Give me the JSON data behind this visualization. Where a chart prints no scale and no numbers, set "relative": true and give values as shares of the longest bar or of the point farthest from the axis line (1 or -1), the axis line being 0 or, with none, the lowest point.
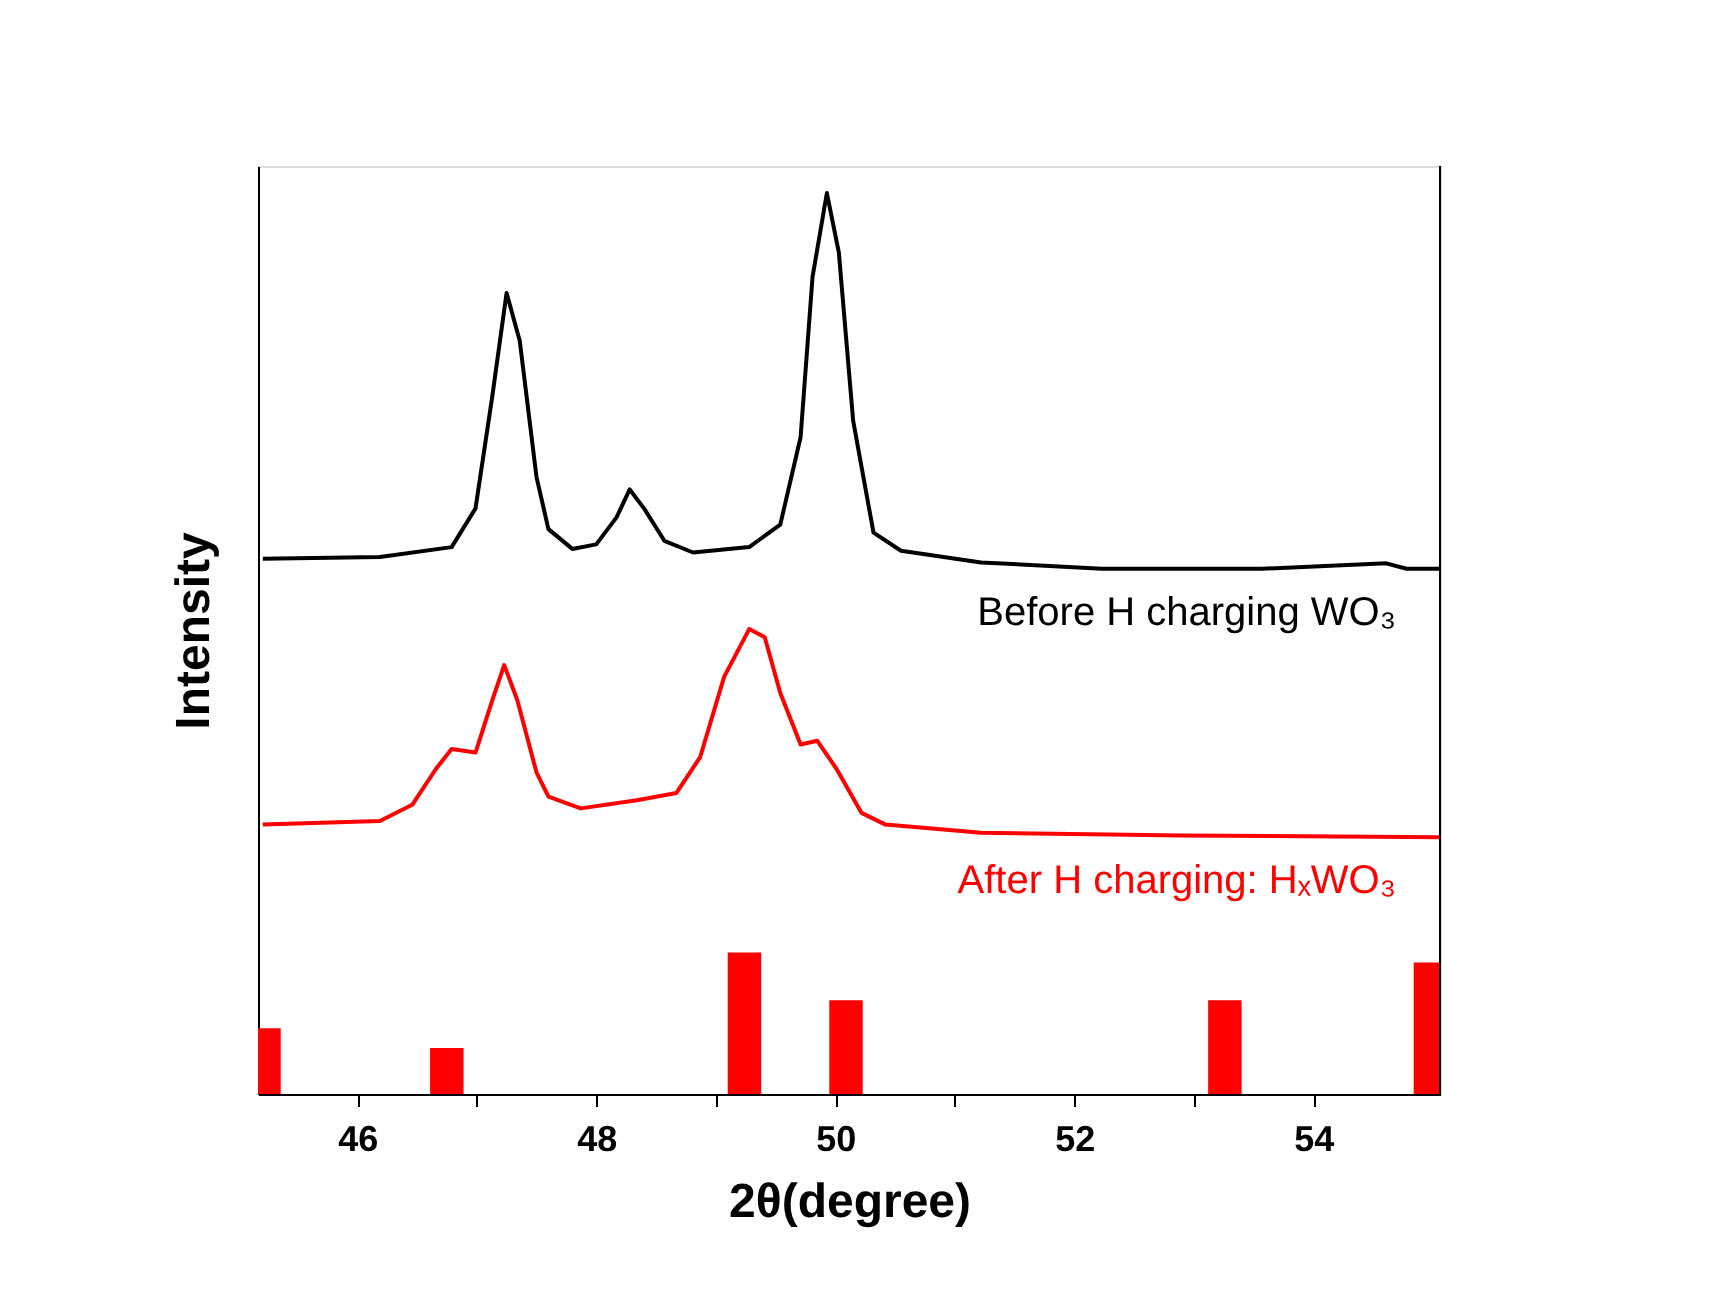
{
  "chart_data": {
    "type": "line",
    "relative": true,
    "xlabel": "2θ(degree)",
    "ylabel": "Intensity",
    "xlim": [
      45.17,
      55.06
    ],
    "xticks": [
      46,
      {
        "value": 47,
        "label": null
      },
      48,
      {
        "value": 49,
        "label": null
      },
      50,
      {
        "value": 51,
        "label": null
      },
      52,
      {
        "value": 53,
        "label": null
      },
      54
    ],
    "series": [
      {
        "name": "Before H charging WO₃",
        "color": "#000000",
        "x": [
          45.21,
          46.19,
          46.79,
          46.99,
          47.13,
          47.25,
          47.36,
          47.5,
          47.6,
          47.8,
          48.0,
          48.17,
          48.28,
          48.4,
          48.57,
          48.81,
          49.28,
          49.54,
          49.71,
          49.81,
          49.93,
          50.03,
          50.15,
          50.32,
          50.55,
          51.22,
          52.23,
          53.57,
          54.61,
          54.78,
          55.06
        ],
        "values": [
          0.594,
          0.596,
          0.607,
          0.65,
          0.774,
          0.889,
          0.836,
          0.685,
          0.627,
          0.605,
          0.61,
          0.64,
          0.671,
          0.65,
          0.614,
          0.601,
          0.607,
          0.632,
          0.729,
          0.907,
          1.0,
          0.934,
          0.747,
          0.623,
          0.603,
          0.59,
          0.583,
          0.583,
          0.589,
          0.583,
          0.583
        ]
      },
      {
        "name": "After H charging: HₓWO₃",
        "color": "#ff0000",
        "x": [
          45.21,
          46.19,
          46.46,
          46.66,
          46.79,
          46.99,
          47.13,
          47.23,
          47.34,
          47.5,
          47.6,
          47.87,
          48.34,
          48.67,
          48.87,
          49.07,
          49.28,
          49.41,
          49.54,
          49.71,
          49.85,
          50.01,
          50.22,
          50.42,
          51.22,
          52.9,
          55.06
        ],
        "values": [
          0.299,
          0.303,
          0.321,
          0.361,
          0.383,
          0.379,
          0.437,
          0.476,
          0.437,
          0.357,
          0.33,
          0.317,
          0.326,
          0.334,
          0.374,
          0.463,
          0.516,
          0.507,
          0.445,
          0.388,
          0.392,
          0.361,
          0.312,
          0.299,
          0.29,
          0.287,
          0.285
        ]
      },
      {
        "type": "bar",
        "color": "#ff0000",
        "x": [
          45.22,
          46.75,
          49.24,
          50.09,
          53.26,
          54.98
        ],
        "values": [
          0.073,
          0.051,
          0.157,
          0.104,
          0.104,
          0.146
        ]
      }
    ]
  }
}
